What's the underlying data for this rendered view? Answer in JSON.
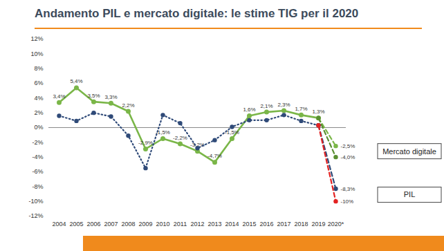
{
  "chart_data": {
    "type": "line",
    "title": "Andamento PIL e mercato digitale: le stime TIG per il 2020",
    "categories": [
      "2004",
      "2005",
      "2006",
      "2007",
      "2008",
      "2009",
      "2010",
      "2011",
      "2012",
      "2013",
      "2014",
      "2015",
      "2016",
      "2017",
      "2018",
      "2019",
      "2020*"
    ],
    "ylim": [
      -12,
      12
    ],
    "yticks": [
      {
        "value": -12,
        "label": "-12%"
      },
      {
        "value": -10,
        "label": "-10%"
      },
      {
        "value": -8,
        "label": "-8%"
      },
      {
        "value": -6,
        "label": "-6%"
      },
      {
        "value": -4,
        "label": "-4%"
      },
      {
        "value": -2,
        "label": "-2%"
      },
      {
        "value": 0,
        "label": "0%"
      },
      {
        "value": 2,
        "label": "2%"
      },
      {
        "value": 4,
        "label": "4%"
      },
      {
        "value": 6,
        "label": "6%"
      },
      {
        "value": 8,
        "label": "8%"
      },
      {
        "value": 10,
        "label": "10%"
      },
      {
        "value": 12,
        "label": "12%"
      }
    ],
    "grid": false,
    "legend": "right",
    "data_labels": true,
    "series": [
      {
        "name": "Mercato digitale",
        "color": "#7ab648",
        "line_style": "solid",
        "marker": "circle",
        "values": [
          3.4,
          5.4,
          3.5,
          3.3,
          2.2,
          -2.9,
          -1.5,
          -2.2,
          -3.2,
          -4.7,
          -1.5,
          1.6,
          2.1,
          2.3,
          1.7,
          1.3,
          null
        ],
        "value_labels": [
          "3,4%",
          "5,4%",
          "3,5%",
          "3,3%",
          "2,2%",
          "-2,9%",
          "-1,5%",
          "-2,2%",
          "-3,2%",
          "-4,7%",
          "-1,5%",
          "1,6%",
          "2,1%",
          "2,3%",
          "1,7%",
          "1,3%",
          null
        ]
      },
      {
        "name": "Mercato digitale",
        "color": "#7ab648",
        "line_style": "dashed",
        "marker": "circle",
        "values": [
          null,
          null,
          null,
          null,
          null,
          null,
          null,
          null,
          null,
          null,
          null,
          null,
          null,
          null,
          null,
          1.3,
          -2.5
        ],
        "value_labels": [
          null,
          null,
          null,
          null,
          null,
          null,
          null,
          null,
          null,
          null,
          null,
          null,
          null,
          null,
          null,
          null,
          "-2,5%"
        ]
      },
      {
        "name": "Mercato digitale",
        "color": "#5a8f32",
        "line_style": "dashed",
        "marker": "circle",
        "values": [
          null,
          null,
          null,
          null,
          null,
          null,
          null,
          null,
          null,
          null,
          null,
          null,
          null,
          null,
          null,
          1.3,
          -4.0
        ],
        "value_labels": [
          null,
          null,
          null,
          null,
          null,
          null,
          null,
          null,
          null,
          null,
          null,
          null,
          null,
          null,
          null,
          null,
          "-4,0%"
        ]
      },
      {
        "name": "PIL",
        "color": "#2f4a78",
        "line_style": "dotted",
        "marker": "circle",
        "values": [
          1.6,
          0.9,
          2.0,
          1.5,
          -1.1,
          -5.5,
          1.7,
          0.6,
          -2.8,
          -1.7,
          0.1,
          1.0,
          1.0,
          1.7,
          0.9,
          0.3,
          null
        ]
      },
      {
        "name": "PIL",
        "color": "#2f4a78",
        "line_style": "dashed",
        "marker": "circle",
        "values": [
          null,
          null,
          null,
          null,
          null,
          null,
          null,
          null,
          null,
          null,
          null,
          null,
          null,
          null,
          null,
          0.3,
          -8.3
        ],
        "value_labels": [
          null,
          null,
          null,
          null,
          null,
          null,
          null,
          null,
          null,
          null,
          null,
          null,
          null,
          null,
          null,
          null,
          "-8,3%"
        ]
      },
      {
        "name": "PIL",
        "color": "#e32222",
        "line_style": "dashed",
        "marker": "circle",
        "values": [
          null,
          null,
          null,
          null,
          null,
          null,
          null,
          null,
          null,
          null,
          null,
          null,
          null,
          null,
          null,
          0.3,
          -10
        ],
        "value_labels": [
          null,
          null,
          null,
          null,
          null,
          null,
          null,
          null,
          null,
          null,
          null,
          null,
          null,
          null,
          null,
          null,
          "-10%"
        ]
      }
    ]
  }
}
